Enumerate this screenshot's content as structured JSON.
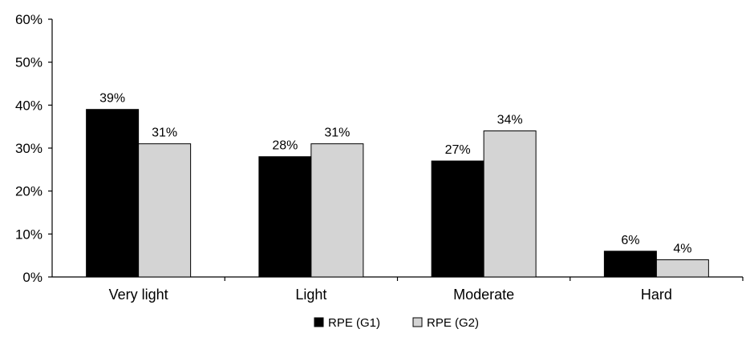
{
  "chart_data": {
    "type": "bar",
    "title": "",
    "xlabel": "",
    "ylabel": "",
    "categories": [
      "Very light",
      "Light",
      "Moderate",
      "Hard"
    ],
    "series": [
      {
        "name": "RPE (G1)",
        "color": "#000000",
        "values": [
          39,
          28,
          27,
          6
        ],
        "labels": [
          "39%",
          "28%",
          "27%",
          "6%"
        ]
      },
      {
        "name": "RPE (G2)",
        "color": "#d4d4d4",
        "values": [
          31,
          31,
          34,
          4
        ],
        "labels": [
          "31%",
          "31%",
          "34%",
          "4%"
        ]
      }
    ],
    "ylim": [
      0,
      60
    ],
    "yticks": [
      0,
      10,
      20,
      30,
      40,
      50,
      60
    ],
    "ytick_labels": [
      "0%",
      "10%",
      "20%",
      "30%",
      "40%",
      "50%",
      "60%"
    ],
    "grid": false,
    "legend_position": "bottom"
  }
}
